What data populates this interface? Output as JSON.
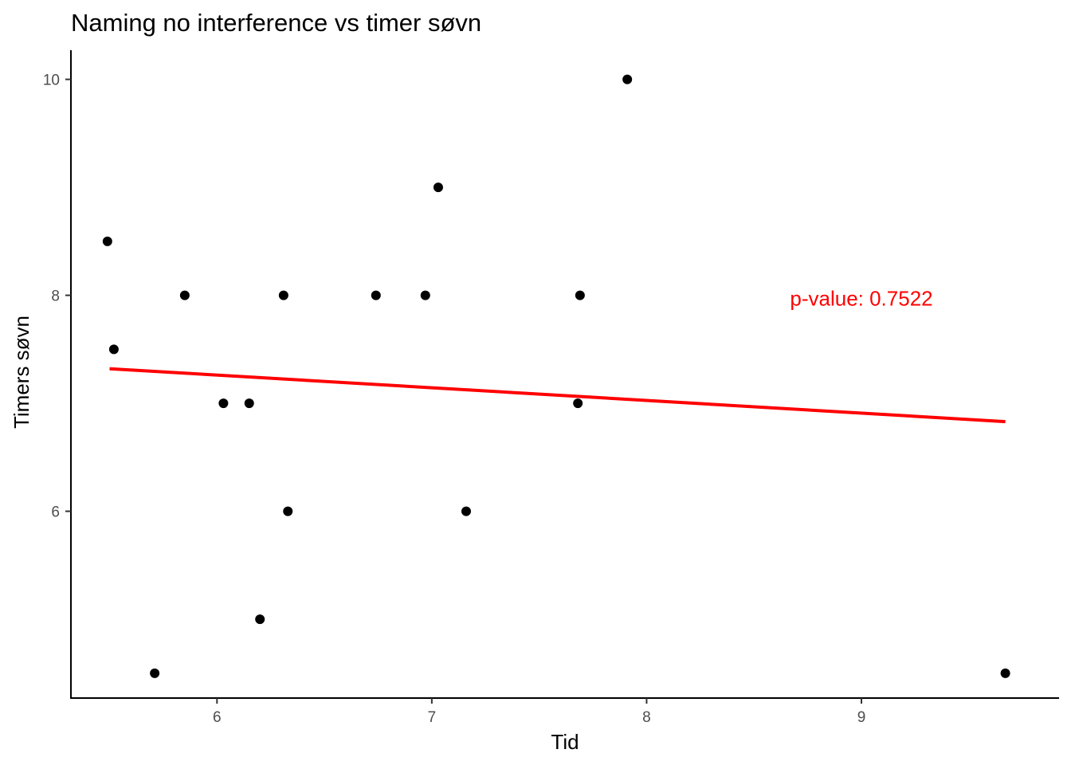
{
  "chart_data": {
    "type": "scatter",
    "title": "Naming no interference vs timer søvn",
    "xlabel": "Tid",
    "ylabel": "Timers søvn",
    "xlim": [
      5.32,
      9.92
    ],
    "ylim": [
      4.27,
      10.27
    ],
    "xticks": [
      6,
      7,
      8,
      9
    ],
    "yticks": [
      6,
      8,
      10
    ],
    "grid": false,
    "series": [
      {
        "points": [
          {
            "x": 5.49,
            "y": 8.5
          },
          {
            "x": 5.52,
            "y": 7.5
          },
          {
            "x": 5.71,
            "y": 4.5
          },
          {
            "x": 5.85,
            "y": 8.0
          },
          {
            "x": 6.03,
            "y": 7.0
          },
          {
            "x": 6.15,
            "y": 7.0
          },
          {
            "x": 6.2,
            "y": 5.0
          },
          {
            "x": 6.31,
            "y": 8.0
          },
          {
            "x": 6.33,
            "y": 6.0
          },
          {
            "x": 6.74,
            "y": 8.0
          },
          {
            "x": 6.97,
            "y": 8.0
          },
          {
            "x": 7.03,
            "y": 9.0
          },
          {
            "x": 7.16,
            "y": 6.0
          },
          {
            "x": 7.68,
            "y": 7.0
          },
          {
            "x": 7.69,
            "y": 8.0
          },
          {
            "x": 7.91,
            "y": 10.0
          },
          {
            "x": 9.67,
            "y": 4.5
          }
        ]
      }
    ],
    "regression_line": {
      "x": [
        5.5,
        9.67
      ],
      "y": [
        7.32,
        6.83
      ],
      "color": "#ff0000"
    },
    "annotation": {
      "text": "p-value: 0.7522",
      "x": 9.0,
      "y": 7.97,
      "color": "#ff0000"
    },
    "point_color": "#000000"
  }
}
